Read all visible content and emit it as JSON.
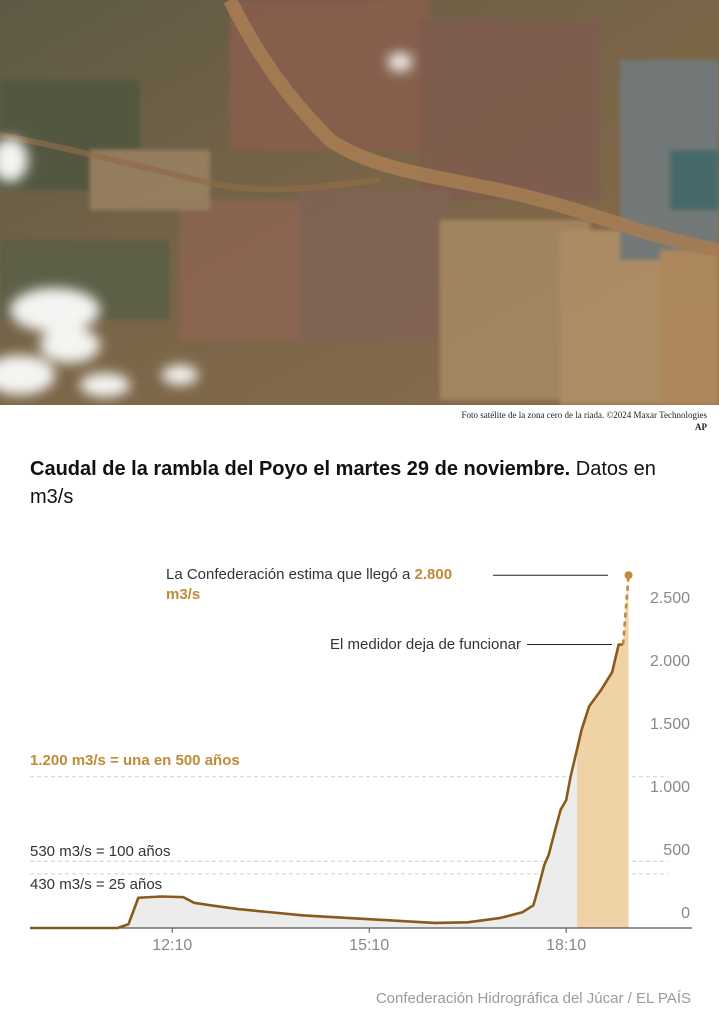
{
  "photo_caption": "Foto satélite de la zona cero de la riada. ©2024 Maxar Technologies",
  "photo_credit": "AP",
  "chart_data": {
    "type": "line",
    "title": "Caudal de la rambla del Poyo el martes 29 de noviembre.",
    "subtitle": "Datos en m3/s",
    "xlim": [
      "10:00",
      "20:05"
    ],
    "xticks": [
      "12:10",
      "15:10",
      "18:10"
    ],
    "ylim": [
      0,
      2900
    ],
    "yticks": [
      0,
      500,
      {
        "value": 1000,
        "label": "1.000"
      },
      {
        "value": 1500,
        "label": "1.500"
      },
      {
        "value": 2000,
        "label": "2.000"
      },
      {
        "value": 2500,
        "label": "2.500"
      }
    ],
    "grid": false,
    "series": [
      {
        "color": "#8a5a1c",
        "style": "solid",
        "x": [
          "10:00",
          "11:20",
          "11:30",
          "11:39",
          "12:00",
          "12:20",
          "12:30",
          "12:45",
          "13:10",
          "13:40",
          "14:10",
          "14:40",
          "15:10",
          "15:40",
          "16:10",
          "16:40",
          "17:10",
          "17:30",
          "17:40",
          "17:44",
          "17:50",
          "17:54",
          "18:00",
          "18:05",
          "18:10",
          "18:14",
          "18:20",
          "18:24",
          "18:31",
          "18:42",
          "18:52",
          "18:58",
          "19:02"
        ],
        "values": [
          0,
          0,
          30,
          240,
          250,
          245,
          200,
          180,
          150,
          125,
          100,
          85,
          70,
          55,
          40,
          45,
          80,
          125,
          180,
          300,
          500,
          580,
          780,
          940,
          1015,
          1200,
          1420,
          1570,
          1760,
          1890,
          2030,
          2250,
          2250
        ]
      },
      {
        "color": "#c08a36",
        "style": "dashed",
        "x": [
          "19:02",
          "19:07"
        ],
        "values": [
          2250,
          2800
        ]
      }
    ],
    "highlight": {
      "from": "18:20",
      "to": "19:07",
      "color": "#efd2a6"
    },
    "reference_lines": [
      {
        "label": "1.200 m3/s = una en 500 años",
        "value": 1200,
        "color": "#c08a36"
      },
      {
        "label": "530 m3/s = 100 años",
        "value": 530,
        "color": "#333333"
      },
      {
        "label": "430 m3/s = 25 años",
        "value": 430,
        "color": "#333333"
      }
    ],
    "annotations": [
      {
        "text": "La Confederación estima que llegó a",
        "highlight": "2.800 m3/s",
        "value": 2800
      },
      {
        "text": "El medidor deja de funcionar",
        "value": 2250
      }
    ]
  },
  "source": "Confederación Hidrográfica del Júcar / EL PAÍS"
}
